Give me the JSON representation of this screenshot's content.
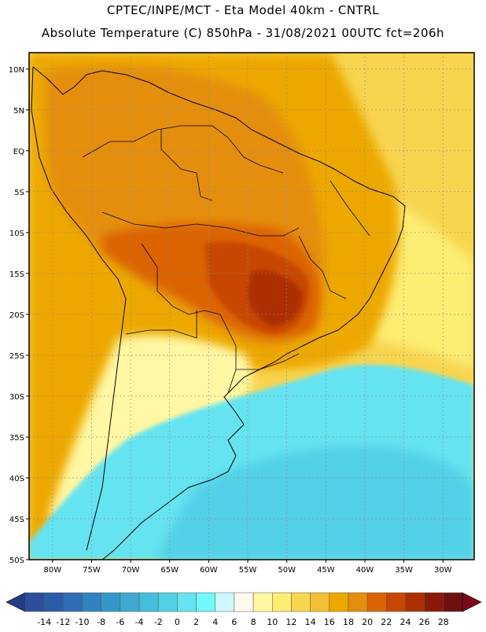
{
  "title_line1": "CPTEC/INPE/MCT -  Eta Model 40km - CNTRL",
  "title_line2": "Absolute Temperature (C) 850hPa - 31/08/2021 00UTC fct=206h",
  "lat_labels": [
    "10N",
    "5N",
    "EQ",
    "5S",
    "10S",
    "15S",
    "20S",
    "25S",
    "30S",
    "35S",
    "40S",
    "45S",
    "50S"
  ],
  "lon_labels": [
    "80W",
    "75W",
    "70W",
    "65W",
    "60W",
    "55W",
    "50W",
    "45W",
    "40W",
    "35W",
    "30W"
  ],
  "colorbar": {
    "labels": [
      "-14",
      "-12",
      "-10",
      "-8",
      "-6",
      "-4",
      "-2",
      "0",
      "2",
      "4",
      "6",
      "8",
      "10",
      "12",
      "14",
      "16",
      "18",
      "20",
      "22",
      "24",
      "26",
      "28"
    ],
    "colors": [
      "#2d4e9c",
      "#2c5ca8",
      "#2f6db5",
      "#3182c1",
      "#3597c8",
      "#3eaad2",
      "#44bedd",
      "#52d0e6",
      "#66e3f0",
      "#72f8fd",
      "#cff6fd",
      "#fffaee",
      "#fff7a3",
      "#fded73",
      "#f7d54f",
      "#f2c032",
      "#eda800",
      "#e58e0c",
      "#db6402",
      "#c84700",
      "#ad2f00",
      "#8c1808",
      "#6d1010"
    ],
    "underflow_color": "#233c86",
    "overflow_color": "#7a0a1a"
  },
  "field_colors": {
    "ocean_warm": "#f7d54f",
    "land_warm": "#eda800",
    "land_hot": "#e58e0c",
    "hot_core": "#db6402",
    "hotter_core": "#c84700",
    "hottest_core": "#ad2f00",
    "cool_south": "#fff7a3",
    "cold_south": "#66e3f0",
    "colder_south": "#52d0e6",
    "coast_yellow": "#fded73"
  }
}
